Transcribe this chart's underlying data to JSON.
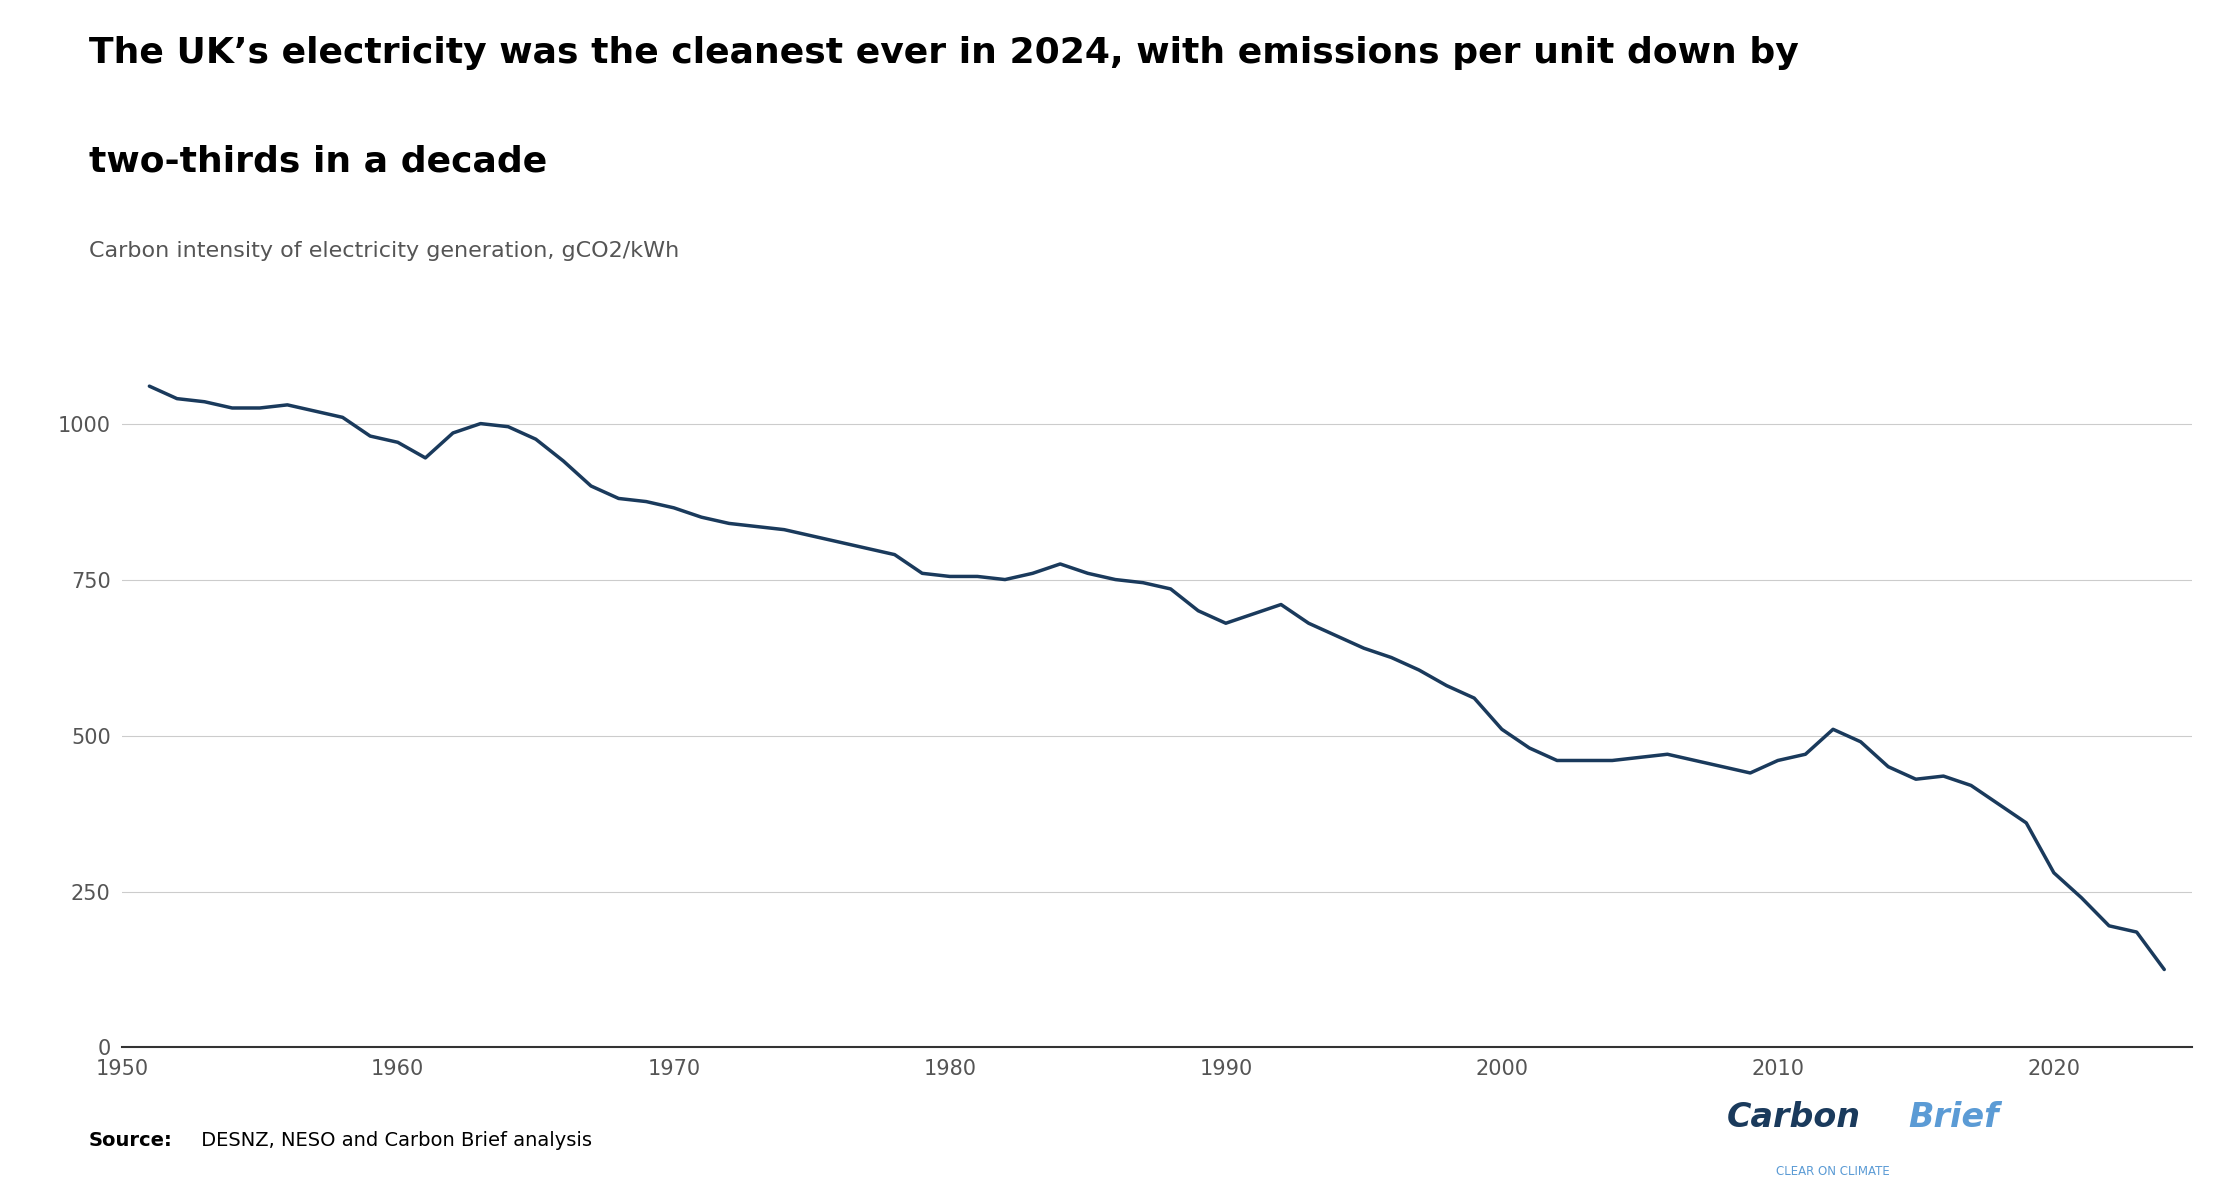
{
  "title_line1": "The UK’s electricity was the cleanest ever in 2024, with emissions per unit down by",
  "title_line2": "two-thirds in a decade",
  "subtitle": "Carbon intensity of electricity generation, gCO2/kWh",
  "source_bold": "Source:",
  "source_normal": " DESNZ, NESO and Carbon Brief analysis",
  "line_color": "#1a3a5c",
  "background_color": "#ffffff",
  "grid_color": "#cccccc",
  "title_fontsize": 26,
  "subtitle_fontsize": 16,
  "tick_fontsize": 15,
  "source_fontsize": 14,
  "xlim": [
    1950,
    2025
  ],
  "ylim": [
    0,
    1100
  ],
  "yticks": [
    0,
    250,
    500,
    750,
    1000
  ],
  "xticks": [
    1950,
    1960,
    1970,
    1980,
    1990,
    2000,
    2010,
    2020
  ],
  "years": [
    1951,
    1952,
    1953,
    1954,
    1955,
    1956,
    1957,
    1958,
    1959,
    1960,
    1961,
    1962,
    1963,
    1964,
    1965,
    1966,
    1967,
    1968,
    1969,
    1970,
    1971,
    1972,
    1973,
    1974,
    1975,
    1976,
    1977,
    1978,
    1979,
    1980,
    1981,
    1982,
    1983,
    1984,
    1985,
    1986,
    1987,
    1988,
    1989,
    1990,
    1991,
    1992,
    1993,
    1994,
    1995,
    1996,
    1997,
    1998,
    1999,
    2000,
    2001,
    2002,
    2003,
    2004,
    2005,
    2006,
    2007,
    2008,
    2009,
    2010,
    2011,
    2012,
    2013,
    2014,
    2015,
    2016,
    2017,
    2018,
    2019,
    2020,
    2021,
    2022,
    2023,
    2024
  ],
  "values": [
    1060,
    1040,
    1035,
    1025,
    1025,
    1030,
    1020,
    1010,
    980,
    970,
    945,
    985,
    1000,
    995,
    975,
    940,
    900,
    880,
    875,
    865,
    850,
    840,
    835,
    830,
    820,
    810,
    800,
    790,
    760,
    755,
    755,
    750,
    760,
    775,
    760,
    750,
    745,
    735,
    700,
    680,
    695,
    710,
    680,
    660,
    640,
    625,
    605,
    580,
    560,
    510,
    480,
    460,
    460,
    460,
    465,
    470,
    460,
    450,
    440,
    460,
    470,
    510,
    490,
    450,
    430,
    435,
    420,
    390,
    360,
    280,
    240,
    195,
    185,
    125
  ]
}
